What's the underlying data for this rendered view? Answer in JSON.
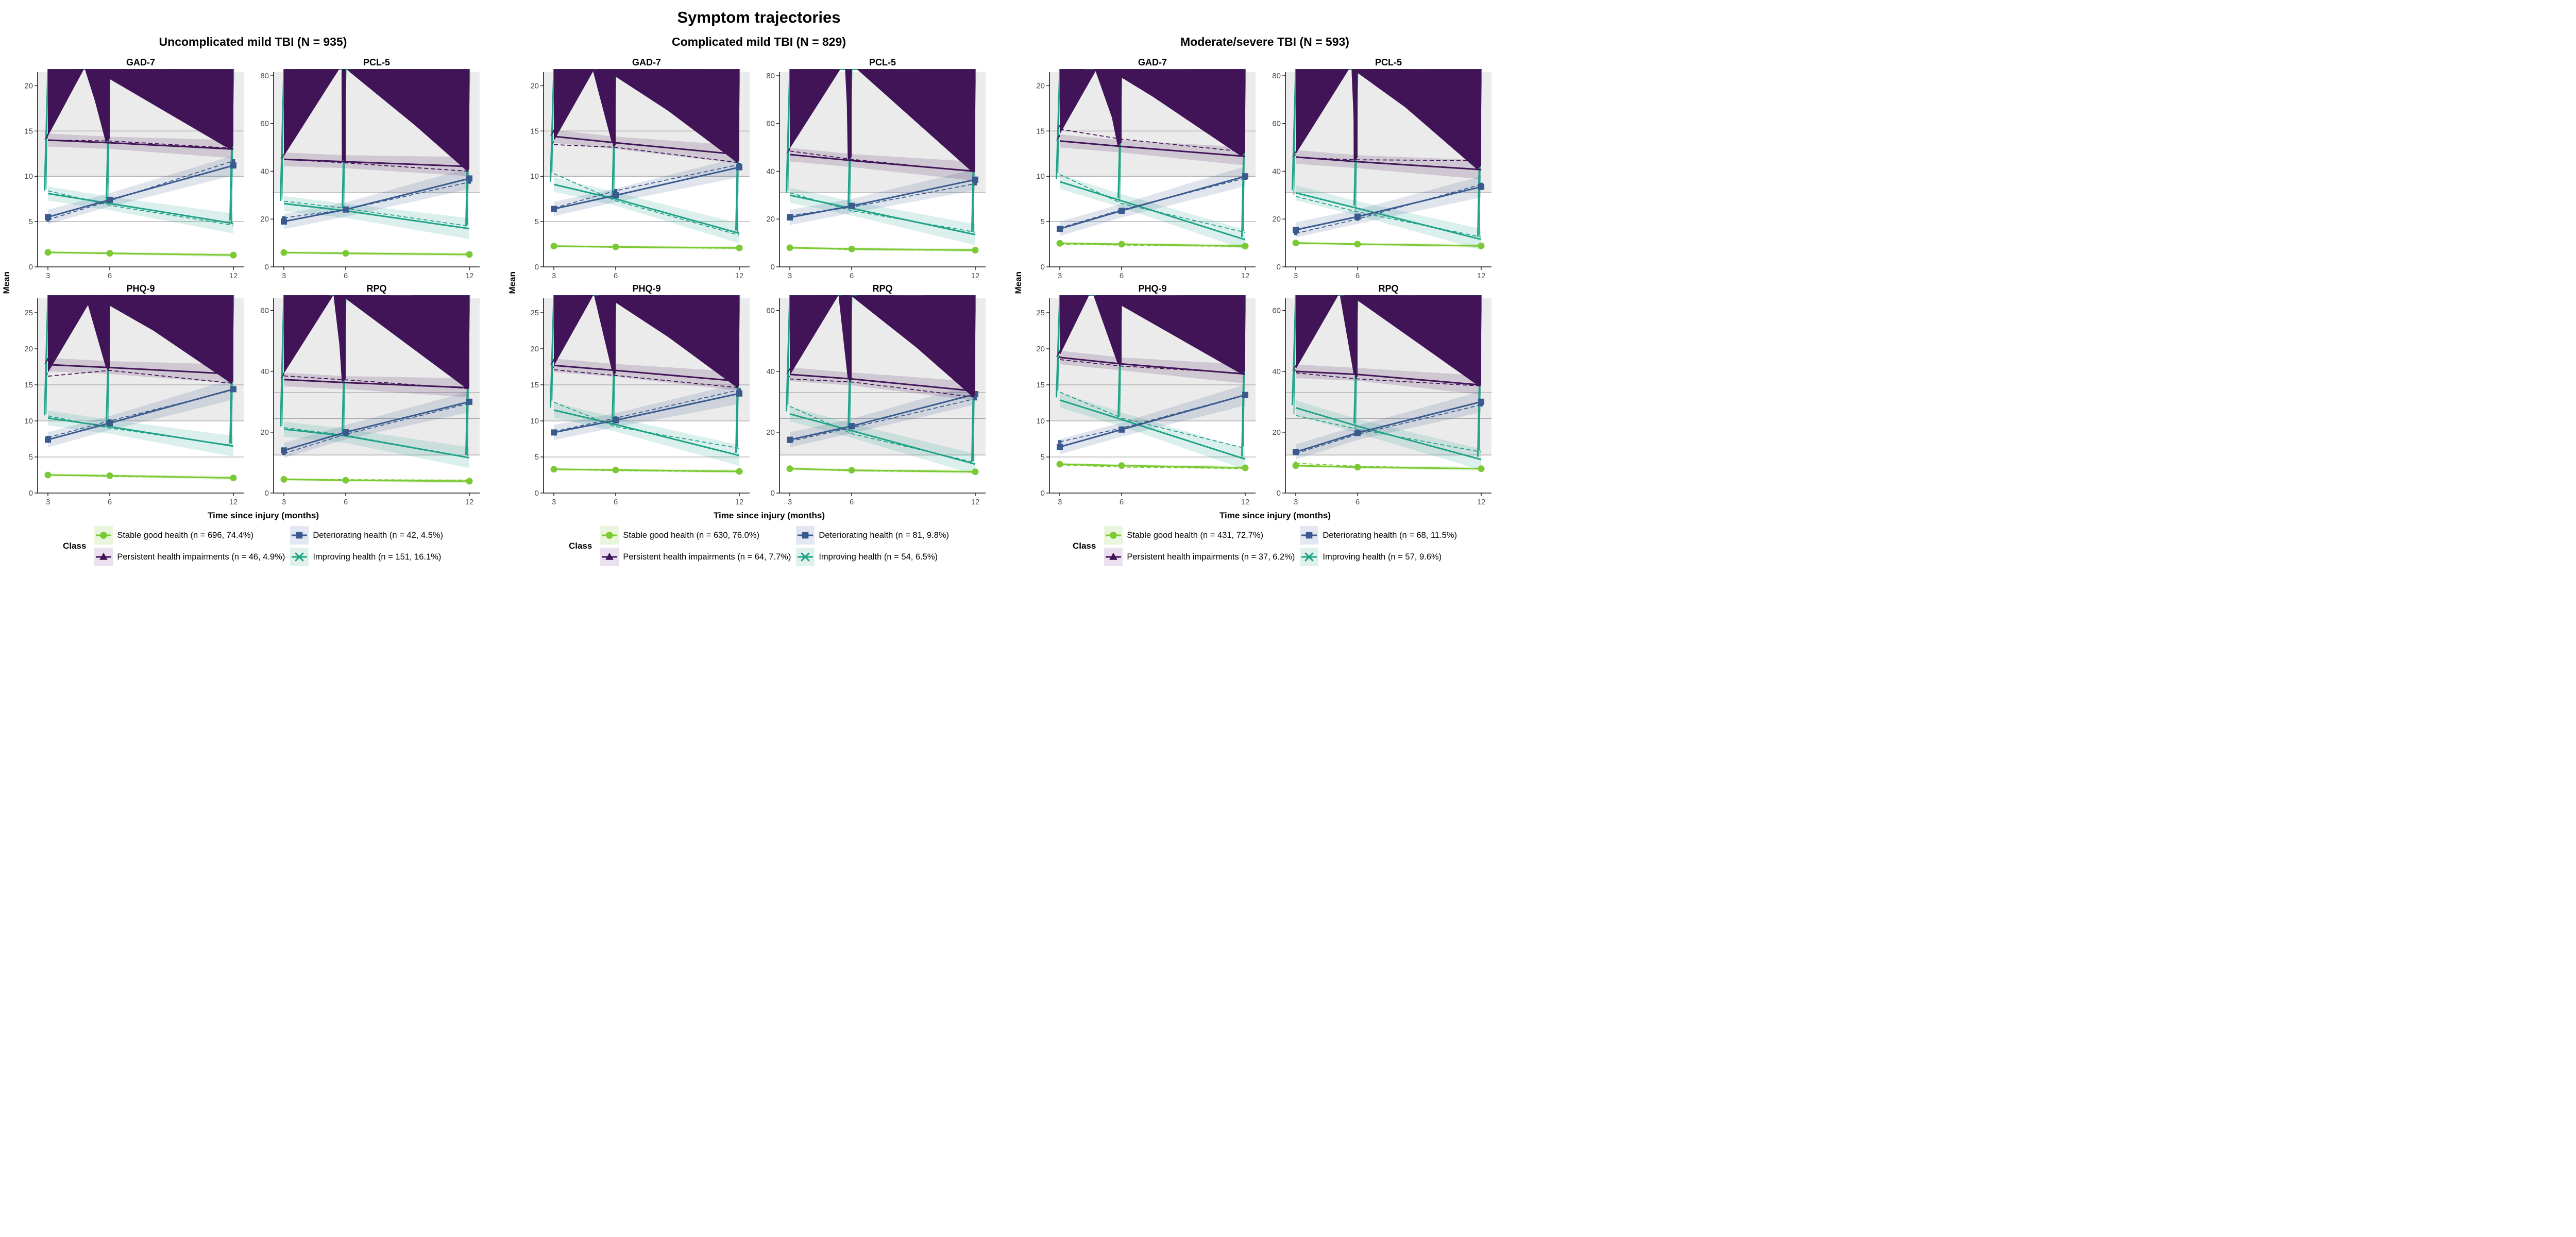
{
  "page_title": "Symptom trajectories",
  "legend_title": "Class",
  "chart_data": {
    "type": "line",
    "x": [
      3,
      6,
      12
    ],
    "xlabel": "Time since injury (months)",
    "ylabel": "Mean",
    "measure_titles": [
      "GAD-7",
      "PCL-5",
      "PHQ-9",
      "RPQ"
    ],
    "axes": {
      "GAD-7": {
        "ylim": [
          0,
          21.5
        ],
        "ticks": [
          0,
          5,
          10,
          15,
          20
        ],
        "cutoffs": [
          5,
          10,
          15
        ],
        "gray_above": 10
      },
      "PCL-5": {
        "ylim": [
          0,
          81.5
        ],
        "ticks": [
          0,
          20,
          40,
          60,
          80
        ],
        "cutoffs": [
          31
        ],
        "gray_above": 31
      },
      "PHQ-9": {
        "ylim": [
          0,
          27
        ],
        "ticks": [
          0,
          5,
          10,
          15,
          20,
          25
        ],
        "cutoffs": [
          5,
          10,
          15
        ],
        "gray_above": 10
      },
      "RPQ": {
        "ylim": [
          0,
          64
        ],
        "ticks": [
          0,
          20,
          40,
          60
        ],
        "cutoffs": [
          12.5,
          24.5,
          33
        ],
        "gray_above": 12.5
      }
    },
    "classes": [
      {
        "id": "stable",
        "label": "Stable good health",
        "color": "#7BC934",
        "tint": "#EAF5DE",
        "marker": "circle",
        "ribbon": 0.22
      },
      {
        "id": "persistent",
        "label": "Persistent health impairments",
        "color": "#411458",
        "tint": "#EAE0EF",
        "marker": "triangle",
        "ribbon": 1.0
      },
      {
        "id": "deteriorating",
        "label": "Deteriorating health",
        "color": "#3A5A8E",
        "tint": "#E2E7F1",
        "marker": "square",
        "ribbon": 1.1
      },
      {
        "id": "improving",
        "label": "Improving health",
        "color": "#20A287",
        "tint": "#DFF1EA",
        "marker": "x",
        "ribbon": 1.1
      }
    ],
    "ribbon_scale": {
      "GAD-7": 0.8,
      "PCL-5": 3.2,
      "PHQ-9": 1.05,
      "RPQ": 2.5
    },
    "panels": [
      {
        "title": "Uncomplicated mild TBI (N = 935)",
        "legend": {
          "stable": "Stable good health (n = 696, 74.4%)",
          "deteriorating": "Deteriorating health (n = 42, 4.5%)",
          "persistent": "Persistent health impairments (n = 46, 4.9%)",
          "improving": "Improving health (n = 151, 16.1%)"
        },
        "series": {
          "GAD-7": {
            "stable": {
              "solid": [
                1.6,
                1.5,
                1.3
              ],
              "dashed": [
                1.6,
                1.45,
                1.3
              ]
            },
            "persistent": {
              "solid": [
                14.0,
                13.7,
                13.0
              ],
              "dashed": [
                14.0,
                13.9,
                13.1
              ]
            },
            "deteriorating": {
              "solid": [
                5.5,
                7.4,
                11.2
              ],
              "dashed": [
                5.2,
                7.3,
                11.7
              ]
            },
            "improving": {
              "solid": [
                8.1,
                7.0,
                4.8
              ],
              "dashed": [
                8.4,
                6.8,
                4.6
              ]
            }
          },
          "PCL-5": {
            "stable": {
              "solid": [
                6,
                5.7,
                5.2
              ],
              "dashed": [
                6,
                5.5,
                5.2
              ]
            },
            "persistent": {
              "solid": [
                45,
                44,
                42
              ],
              "dashed": [
                45,
                43.5,
                40
              ]
            },
            "deteriorating": {
              "solid": [
                19,
                24,
                37
              ],
              "dashed": [
                20.5,
                24,
                35.5
              ]
            },
            "improving": {
              "solid": [
                26.5,
                23.5,
                16
              ],
              "dashed": [
                27.5,
                24.5,
                17
              ]
            }
          },
          "PHQ-9": {
            "stable": {
              "solid": [
                2.5,
                2.4,
                2.1
              ],
              "dashed": [
                2.5,
                2.3,
                2.1
              ]
            },
            "persistent": {
              "solid": [
                17.8,
                17.4,
                16.5
              ],
              "dashed": [
                16.2,
                17.0,
                15.2
              ]
            },
            "deteriorating": {
              "solid": [
                7.4,
                9.7,
                14.4
              ],
              "dashed": [
                7.7,
                10.0,
                14.3
              ]
            },
            "improving": {
              "solid": [
                10.4,
                9.2,
                6.5
              ],
              "dashed": [
                10.7,
                9.0,
                6.6
              ]
            }
          },
          "RPQ": {
            "stable": {
              "solid": [
                4.5,
                4.2,
                3.9
              ],
              "dashed": [
                4.5,
                4.4,
                4.2
              ]
            },
            "persistent": {
              "solid": [
                37.3,
                36.3,
                34.6
              ],
              "dashed": [
                38.5,
                37.2,
                34.3
              ]
            },
            "deteriorating": {
              "solid": [
                14,
                20,
                30
              ],
              "dashed": [
                13,
                19.3,
                29.5
              ]
            },
            "improving": {
              "solid": [
                21,
                18.8,
                11.6
              ],
              "dashed": [
                21.5,
                19,
                11.7
              ]
            }
          }
        }
      },
      {
        "title": "Complicated mild TBI (N = 829)",
        "legend": {
          "stable": "Stable good health (n = 630, 76.0%)",
          "deteriorating": "Deteriorating health (n = 81, 9.8%)",
          "persistent": "Persistent health impairments (n = 64, 7.7%)",
          "improving": "Improving health (n = 54, 6.5%)"
        },
        "series": {
          "GAD-7": {
            "stable": {
              "solid": [
                2.3,
                2.2,
                2.1
              ],
              "dashed": [
                2.3,
                2.15,
                2.05
              ]
            },
            "persistent": {
              "solid": [
                14.4,
                13.7,
                12.4
              ],
              "dashed": [
                13.5,
                13.2,
                11.5
              ]
            },
            "deteriorating": {
              "solid": [
                6.4,
                7.9,
                11.0
              ],
              "dashed": [
                6.5,
                8.4,
                11.3
              ]
            },
            "improving": {
              "solid": [
                9.1,
                7.5,
                3.7
              ],
              "dashed": [
                10.3,
                7.3,
                3.5
              ]
            }
          },
          "PCL-5": {
            "stable": {
              "solid": [
                8,
                7.5,
                7
              ],
              "dashed": [
                8,
                7.2,
                6.9
              ]
            },
            "persistent": {
              "solid": [
                47,
                44.5,
                40
              ],
              "dashed": [
                48.5,
                45,
                39.8
              ]
            },
            "deteriorating": {
              "solid": [
                20.7,
                25.5,
                36.5
              ],
              "dashed": [
                21.5,
                25,
                34.8
              ]
            },
            "improving": {
              "solid": [
                30,
                24.5,
                13.5
              ],
              "dashed": [
                31,
                23.5,
                14.5
              ]
            }
          },
          "PHQ-9": {
            "stable": {
              "solid": [
                3.3,
                3.2,
                3.0
              ],
              "dashed": [
                3.3,
                3.1,
                2.95
              ]
            },
            "persistent": {
              "solid": [
                17.7,
                17.0,
                15.5
              ],
              "dashed": [
                17.1,
                16.3,
                14.6
              ]
            },
            "deteriorating": {
              "solid": [
                8.4,
                10.1,
                13.8
              ],
              "dashed": [
                8.5,
                10.4,
                14.3
              ]
            },
            "improving": {
              "solid": [
                11.5,
                9.5,
                5.2
              ],
              "dashed": [
                12.6,
                9.2,
                6.2
              ]
            }
          },
          "RPQ": {
            "stable": {
              "solid": [
                8,
                7.5,
                7
              ],
              "dashed": [
                8,
                7.3,
                6.9
              ]
            },
            "persistent": {
              "solid": [
                39,
                37.5,
                33.5
              ],
              "dashed": [
                37.5,
                36.5,
                31.5
              ]
            },
            "deteriorating": {
              "solid": [
                17.5,
                22,
                32.5
              ],
              "dashed": [
                17,
                21.5,
                31
              ]
            },
            "improving": {
              "solid": [
                26,
                20.5,
                9.5
              ],
              "dashed": [
                28.5,
                19.5,
                10
              ]
            }
          }
        }
      },
      {
        "title": "Moderate/severe TBI (N = 593)",
        "legend": {
          "stable": "Stable good health (n = 431, 72.7%)",
          "deteriorating": "Deteriorating health (n = 68, 11.5%)",
          "persistent": "Persistent health impairments (n = 37, 6.2%)",
          "improving": "Improving health (n = 57, 9.6%)"
        },
        "series": {
          "GAD-7": {
            "stable": {
              "solid": [
                2.6,
                2.5,
                2.3
              ],
              "dashed": [
                2.5,
                2.4,
                2.25
              ]
            },
            "persistent": {
              "solid": [
                13.9,
                13.3,
                12.2
              ],
              "dashed": [
                15.2,
                14.1,
                12.7
              ]
            },
            "deteriorating": {
              "solid": [
                4.2,
                6.2,
                10.0
              ],
              "dashed": [
                4.3,
                6.3,
                9.8
              ]
            },
            "improving": {
              "solid": [
                9.4,
                7.3,
                3.0
              ],
              "dashed": [
                10.2,
                7.0,
                3.8
              ]
            }
          },
          "PCL-5": {
            "stable": {
              "solid": [
                10,
                9.5,
                8.8
              ],
              "dashed": [
                10.2,
                9.3,
                9.0
              ]
            },
            "persistent": {
              "solid": [
                46,
                44,
                40.7
              ],
              "dashed": [
                45.8,
                44.8,
                44.5
              ]
            },
            "deteriorating": {
              "solid": [
                15.5,
                21,
                33.5
              ],
              "dashed": [
                14,
                20,
                34.5
              ]
            },
            "improving": {
              "solid": [
                31,
                24.5,
                11.5
              ],
              "dashed": [
                29.5,
                23,
                12.5
              ]
            }
          },
          "PHQ-9": {
            "stable": {
              "solid": [
                4.0,
                3.8,
                3.5
              ],
              "dashed": [
                3.9,
                3.6,
                3.4
              ]
            },
            "persistent": {
              "solid": [
                18.8,
                17.9,
                16.5
              ],
              "dashed": [
                18.5,
                17.6,
                16.6
              ]
            },
            "deteriorating": {
              "solid": [
                6.4,
                8.8,
                13.6
              ],
              "dashed": [
                7.1,
                9.0,
                13.6
              ]
            },
            "improving": {
              "solid": [
                12.9,
                10.2,
                4.7
              ],
              "dashed": [
                14.0,
                10.4,
                6.2
              ]
            }
          },
          "RPQ": {
            "stable": {
              "solid": [
                9,
                8.5,
                8
              ],
              "dashed": [
                9.8,
                8.8,
                8
              ]
            },
            "persistent": {
              "solid": [
                40,
                39,
                35.5
              ],
              "dashed": [
                39.5,
                37.5,
                35.2
              ]
            },
            "deteriorating": {
              "solid": [
                13.5,
                19.8,
                30
              ],
              "dashed": [
                13,
                19.3,
                29
              ]
            },
            "improving": {
              "solid": [
                28,
                22,
                11
              ],
              "dashed": [
                25.5,
                21,
                13.5
              ]
            }
          }
        }
      }
    ]
  }
}
